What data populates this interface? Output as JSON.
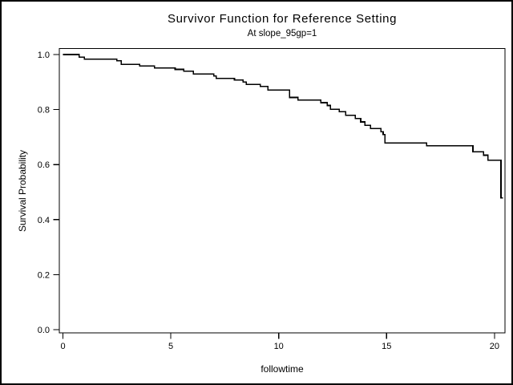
{
  "window": {
    "background": "#ffffff",
    "border_color": "#000000"
  },
  "chart_data": {
    "type": "line",
    "subtype": "kaplan-meier-step",
    "title": "Survivor Function for Reference Setting",
    "subtitle": "At slope_95gp=1",
    "xlabel": "followtime",
    "ylabel": "Survival Probability",
    "xlim": [
      0,
      20.5
    ],
    "ylim": [
      0.0,
      1.0
    ],
    "x_ticks": [
      0,
      5,
      10,
      15,
      20
    ],
    "y_ticks": [
      "1.0",
      "0.8",
      "0.6",
      "0.4",
      "0.2",
      "0.0"
    ],
    "grid": false,
    "legend_position": "none",
    "frame": true,
    "curve_color": "#000000",
    "series": [
      {
        "name": "survivor-function",
        "time": [
          0,
          0.75,
          1.0,
          2.5,
          2.7,
          3.55,
          4.25,
          5.2,
          5.6,
          6.05,
          7.0,
          7.1,
          7.95,
          8.35,
          8.5,
          9.15,
          9.5,
          10.5,
          10.9,
          11.95,
          12.25,
          12.4,
          12.8,
          13.1,
          13.55,
          13.8,
          14.0,
          14.25,
          14.74,
          14.84,
          14.93,
          16.85,
          19.0,
          19.5,
          19.7,
          20.3
        ],
        "survival": [
          1.0,
          0.991,
          0.983,
          0.977,
          0.964,
          0.958,
          0.951,
          0.946,
          0.939,
          0.929,
          0.922,
          0.913,
          0.907,
          0.9,
          0.891,
          0.884,
          0.871,
          0.844,
          0.834,
          0.825,
          0.815,
          0.801,
          0.792,
          0.779,
          0.767,
          0.755,
          0.743,
          0.731,
          0.719,
          0.709,
          0.679,
          0.668,
          0.646,
          0.634,
          0.616,
          0.479
        ],
        "end_time": 20.4
      }
    ]
  }
}
